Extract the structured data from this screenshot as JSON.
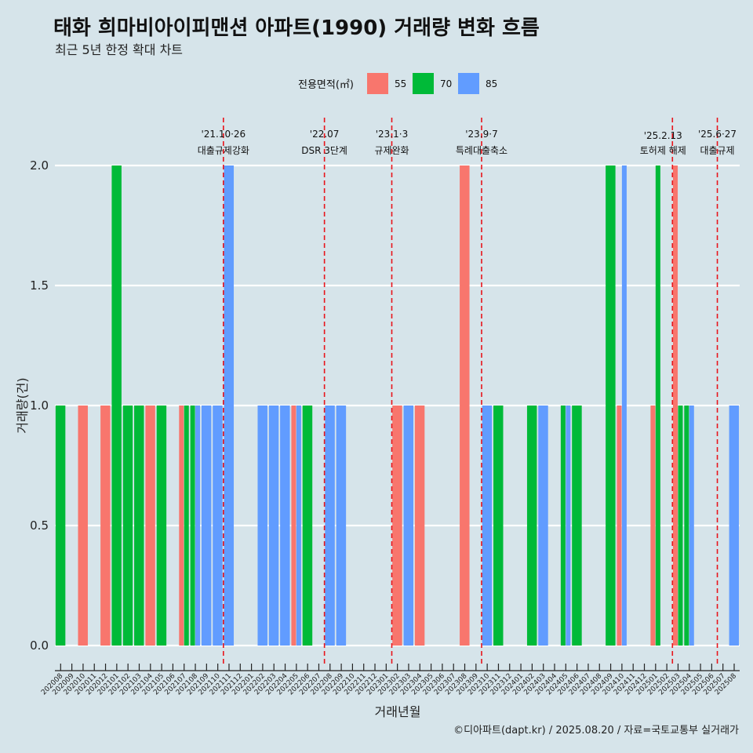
{
  "chart_data": {
    "type": "bar",
    "title": "태화 희마비아이피맨션 아파트(1990) 거래량 변화 흐름",
    "subtitle": "최근 5년 한정 확대 차트",
    "xlabel": "거래년월",
    "ylabel": "거래량(건)",
    "ylim": [
      0,
      2
    ],
    "yticks": [
      "0.0",
      "0.5",
      "1.0",
      "1.5",
      "2.0"
    ],
    "legend": {
      "title": "전용면적(㎡)",
      "position": "top",
      "items": [
        {
          "label": "55",
          "color": "#f8766d"
        },
        {
          "label": "70",
          "color": "#00ba38"
        },
        {
          "label": "85",
          "color": "#619cff"
        }
      ]
    },
    "categories": [
      "202008",
      "202009",
      "202010",
      "202011",
      "202012",
      "202101",
      "202102",
      "202103",
      "202104",
      "202105",
      "202106",
      "202107",
      "202108",
      "202109",
      "202110",
      "202111",
      "202112",
      "202201",
      "202202",
      "202203",
      "202204",
      "202205",
      "202206",
      "202207",
      "202208",
      "202209",
      "202210",
      "202211",
      "202212",
      "202301",
      "202302",
      "202303",
      "202304",
      "202305",
      "202306",
      "202307",
      "202308",
      "202309",
      "202310",
      "202311",
      "202312",
      "202401",
      "202402",
      "202403",
      "202404",
      "202405",
      "202406",
      "202407",
      "202408",
      "202409",
      "202410",
      "202411",
      "202412",
      "202501",
      "202502",
      "202503",
      "202504",
      "202505",
      "202506",
      "202507",
      "202508"
    ],
    "series": [
      {
        "name": "55",
        "values": [
          0,
          0,
          1,
          0,
          1,
          0,
          0,
          0,
          1,
          0,
          0,
          1,
          0,
          0,
          0,
          0,
          0,
          0,
          0,
          0,
          0,
          1,
          0,
          0,
          0,
          0,
          0,
          0,
          0,
          0,
          1,
          0,
          1,
          0,
          0,
          0,
          2,
          0,
          0,
          0,
          0,
          0,
          0,
          0,
          0,
          0,
          0,
          0,
          0,
          0,
          1,
          0,
          0,
          1,
          0,
          2,
          0,
          0,
          0,
          0,
          0
        ]
      },
      {
        "name": "70",
        "values": [
          1,
          0,
          0,
          0,
          0,
          2,
          1,
          1,
          0,
          1,
          0,
          1,
          1,
          0,
          0,
          0,
          0,
          0,
          0,
          0,
          0,
          0,
          1,
          0,
          0,
          0,
          0,
          0,
          0,
          0,
          0,
          0,
          0,
          0,
          0,
          0,
          0,
          0,
          0,
          1,
          0,
          0,
          1,
          0,
          0,
          1,
          1,
          0,
          0,
          2,
          0,
          0,
          0,
          2,
          0,
          1,
          1,
          0,
          0,
          0,
          0
        ]
      },
      {
        "name": "85",
        "values": [
          0,
          0,
          0,
          0,
          0,
          0,
          0,
          0,
          0,
          0,
          0,
          0,
          1,
          1,
          1,
          2,
          0,
          0,
          1,
          1,
          1,
          1,
          0,
          0,
          1,
          1,
          0,
          0,
          0,
          0,
          0,
          1,
          0,
          0,
          0,
          0,
          0,
          0,
          1,
          0,
          0,
          0,
          0,
          1,
          0,
          1,
          0,
          0,
          0,
          0,
          2,
          0,
          0,
          0,
          0,
          0,
          1,
          0,
          0,
          0,
          1
        ]
      }
    ],
    "annotations": [
      {
        "after": "202110",
        "date": "'21.10·26",
        "label": "대출규제강화"
      },
      {
        "after": "202207",
        "date": "'22.07",
        "label": "DSR 3단계"
      },
      {
        "after": "202301",
        "date": "'23.1·3",
        "label": "규제완화"
      },
      {
        "after": "202309",
        "date": "'23.9·7",
        "label": "특례대출축소"
      },
      {
        "after": "202502",
        "date": "'25.2.13",
        "label": "토허제 해제"
      },
      {
        "after": "202506",
        "date": "'25.6·27",
        "label": "대출규제"
      }
    ],
    "caption": "©디아파트(dapt.kr) / 2025.08.20 / 자료=국토교통부 실거래가",
    "grid": true
  }
}
